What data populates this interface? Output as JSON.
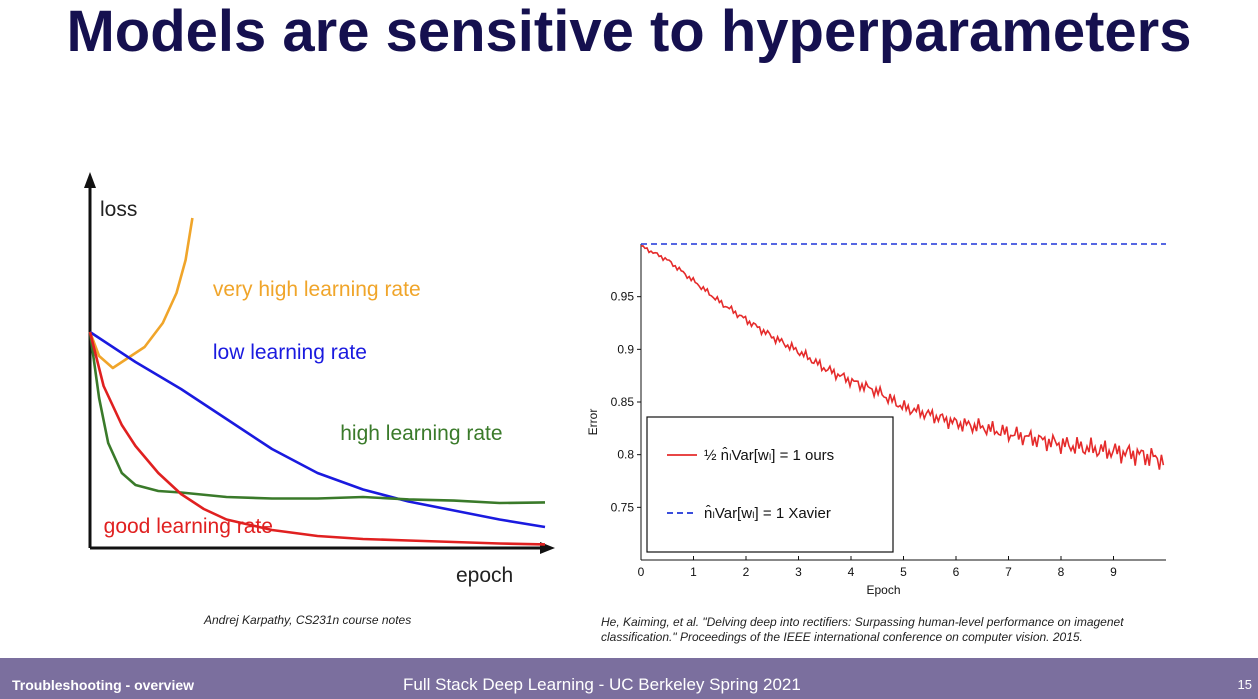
{
  "slide": {
    "title": "Models are sensitive to hyperparameters",
    "caption_left": "Andrej Karpathy, CS231n course notes",
    "caption_right": "He, Kaiming, et al. \"Delving deep into rectifiers: Surpassing human-level performance on imagenet classification.\" Proceedings of the IEEE international conference on computer vision. 2015."
  },
  "footer": {
    "left": "Troubleshooting - overview",
    "center": "Full Stack Deep Learning - UC Berkeley Spring 2021",
    "page": "15"
  },
  "chart_data": [
    {
      "type": "line",
      "title": "",
      "xlabel": "epoch",
      "ylabel": "loss",
      "axis_ticks": false,
      "x_range": [
        0,
        10
      ],
      "y_range": [
        0,
        10
      ],
      "series": [
        {
          "name": "very high learning rate",
          "color": "#f0a52a",
          "x": [
            0,
            0.2,
            0.5,
            0.8,
            1.2,
            1.6,
            1.9,
            2.1,
            2.25
          ],
          "y": [
            7.2,
            6.4,
            6.0,
            6.3,
            6.7,
            7.5,
            8.5,
            9.6,
            11.0
          ]
        },
        {
          "name": "low learning rate",
          "color": "#1a1adf",
          "x": [
            0,
            1,
            2,
            3,
            4,
            5,
            6,
            7,
            8,
            9,
            10
          ],
          "y": [
            7.2,
            6.2,
            5.3,
            4.3,
            3.3,
            2.5,
            1.95,
            1.55,
            1.25,
            0.95,
            0.7
          ]
        },
        {
          "name": "high learning rate",
          "color": "#3a7a2a",
          "x": [
            0,
            0.2,
            0.4,
            0.7,
            1,
            1.5,
            2,
            3,
            4,
            5,
            6,
            7,
            8,
            9,
            10
          ],
          "y": [
            7.2,
            5.0,
            3.5,
            2.5,
            2.1,
            1.9,
            1.85,
            1.7,
            1.65,
            1.65,
            1.7,
            1.62,
            1.58,
            1.5,
            1.52
          ]
        },
        {
          "name": "good learning rate",
          "color": "#e02020",
          "x": [
            0,
            0.3,
            0.7,
            1,
            1.5,
            2,
            2.5,
            3,
            4,
            5,
            6,
            7,
            8,
            9,
            10
          ],
          "y": [
            7.2,
            5.4,
            4.1,
            3.4,
            2.5,
            1.8,
            1.3,
            0.95,
            0.6,
            0.4,
            0.3,
            0.25,
            0.2,
            0.15,
            0.12
          ]
        }
      ],
      "labels": [
        {
          "text": "very high learning rate",
          "x": 2.7,
          "y": 8.4,
          "color": "#f0a52a"
        },
        {
          "text": "low learning rate",
          "x": 2.7,
          "y": 6.3,
          "color": "#1a1adf"
        },
        {
          "text": "high learning rate",
          "x": 5.5,
          "y": 3.6,
          "color": "#3a7a2a"
        },
        {
          "text": "good learning rate",
          "x": 0.3,
          "y": 0.5,
          "color": "#e02020"
        }
      ]
    },
    {
      "type": "line",
      "title": "",
      "xlabel": "Epoch",
      "ylabel": "Error",
      "xlim": [
        0,
        10
      ],
      "ylim": [
        0.7,
        1.0
      ],
      "xticks": [
        0,
        1,
        2,
        3,
        4,
        5,
        6,
        7,
        8,
        9
      ],
      "yticks": [
        0.75,
        0.8,
        0.85,
        0.9,
        0.95
      ],
      "ytick_labels": [
        "0.75",
        "0.8",
        "0.85",
        "0.9",
        "0.95"
      ],
      "series": [
        {
          "name": "ours",
          "legend_label": "½ n̂ₗVar[wₗ] = 1  ours",
          "color": "#e52b2b",
          "style": "solid",
          "x": [
            0,
            0.5,
            1,
            1.5,
            2,
            2.5,
            3,
            3.5,
            4,
            4.5,
            5,
            5.5,
            6,
            6.5,
            7,
            7.5,
            8,
            8.5,
            9,
            9.5,
            9.95
          ],
          "y": [
            0.998,
            0.985,
            0.965,
            0.945,
            0.928,
            0.912,
            0.898,
            0.882,
            0.87,
            0.86,
            0.845,
            0.838,
            0.83,
            0.826,
            0.82,
            0.815,
            0.81,
            0.806,
            0.803,
            0.8,
            0.795
          ]
        },
        {
          "name": "Xavier",
          "legend_label": "n̂ₗVar[wₗ] = 1  Xavier",
          "color": "#1f35d8",
          "style": "dashed",
          "x": [
            0,
            10
          ],
          "y": [
            1.0,
            1.0
          ]
        }
      ]
    }
  ]
}
